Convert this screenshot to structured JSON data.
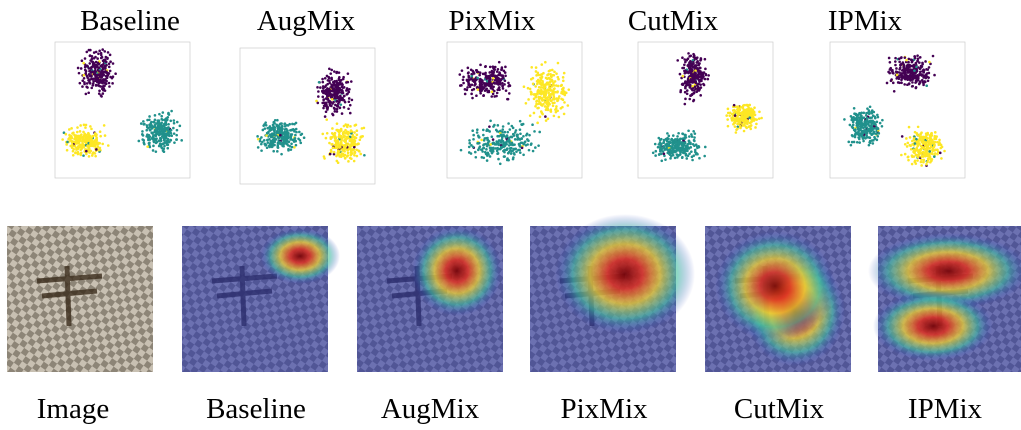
{
  "top_row": {
    "labels": [
      "Baseline",
      "AugMix",
      "PixMix",
      "CutMix",
      "IPMix"
    ]
  },
  "bottom_row": {
    "labels": [
      "Image",
      "Baseline",
      "AugMix",
      "PixMix",
      "CutMix",
      "IPMix"
    ]
  }
}
